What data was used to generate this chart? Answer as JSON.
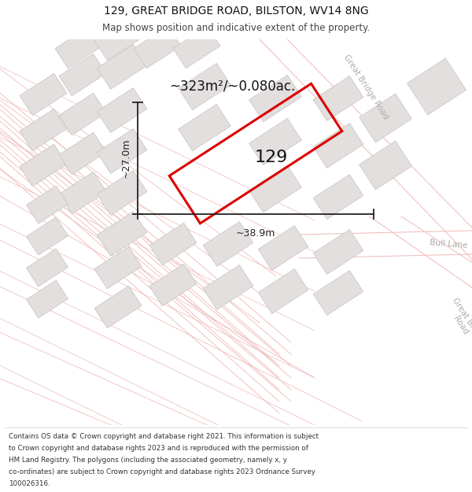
{
  "title_line1": "129, GREAT BRIDGE ROAD, BILSTON, WV14 8NG",
  "title_line2": "Map shows position and indicative extent of the property.",
  "area_label": "~323m²/~0.080ac.",
  "width_label": "~38.9m",
  "height_label": "~27.0m",
  "property_number": "129",
  "footer_lines": [
    "Contains OS data © Crown copyright and database right 2021. This information is subject",
    "to Crown copyright and database rights 2023 and is reproduced with the permission of",
    "HM Land Registry. The polygons (including the associated geometry, namely x, y",
    "co-ordinates) are subject to Crown copyright and database rights 2023 Ordnance Survey",
    "100026316."
  ],
  "map_bg": "#f2f0ef",
  "road_color": "#ffffff",
  "building_fc": "#e2dfde",
  "building_ec": "#ccc8c6",
  "road_pink": "#f0b8b8",
  "property_color": "#dd0000",
  "dim_color": "#222222",
  "road_label_color": "#b0acaa",
  "title_fontsize": 10,
  "subtitle_fontsize": 8.5,
  "footer_fontsize": 6.3,
  "area_fontsize": 12,
  "prop_num_fontsize": 16
}
